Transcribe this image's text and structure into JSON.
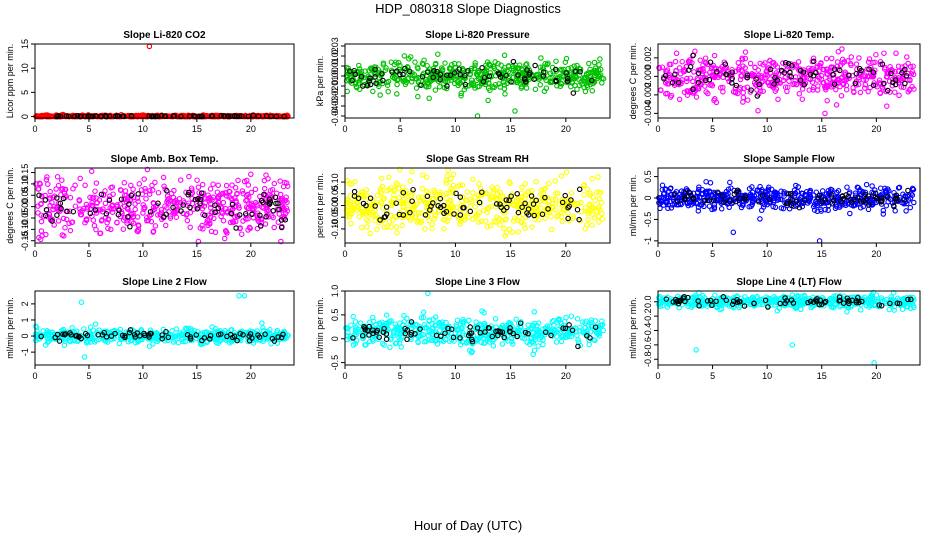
{
  "figure": {
    "title": "HDP_080318  Slope Diagnostics",
    "xlabel": "Hour of Day (UTC)"
  },
  "chart_data": [
    {
      "type": "scatter",
      "title": "Slope Li-820 CO2",
      "ylabel": "Licor ppm per min.",
      "color": "#ff0000",
      "xlim": [
        0,
        24
      ],
      "ylim": [
        -0.3,
        15
      ],
      "xticks": [
        0,
        5,
        10,
        15,
        20
      ],
      "yticks": [
        0,
        5,
        10,
        15
      ],
      "yticklabels": [
        "0",
        "5",
        "10",
        "15"
      ],
      "spread": 0.25,
      "center": 0.05,
      "outliers": [
        [
          10.6,
          14.5
        ]
      ]
    },
    {
      "type": "scatter",
      "title": "Slope Li-820 Pressure",
      "ylabel": "kPa per min.",
      "color": "#00c000",
      "xlim": [
        0,
        24
      ],
      "ylim": [
        -0.042,
        0.032
      ],
      "xticks": [
        0,
        5,
        10,
        15,
        20
      ],
      "yticks": [
        -0.04,
        -0.03,
        -0.02,
        -0.01,
        0,
        0.01,
        0.02,
        0.03
      ],
      "yticklabels": [
        "-0.04",
        "-0.03",
        "-0.02",
        "-0.01",
        "0.00",
        "0.01",
        "0.02",
        "0.03"
      ],
      "spread": 0.018,
      "center": 0.0,
      "outliers": [
        [
          12.0,
          -0.04
        ],
        [
          15.4,
          -0.035
        ]
      ]
    },
    {
      "type": "scatter",
      "title": "Slope Li-820 Temp.",
      "ylabel": "degrees C per min.",
      "color": "#ff00ff",
      "xlim": [
        0,
        24
      ],
      "ylim": [
        -0.0045,
        0.0035
      ],
      "xticks": [
        0,
        5,
        10,
        15,
        20
      ],
      "yticks": [
        -0.004,
        -0.002,
        0,
        0.002
      ],
      "yticklabels": [
        "-0.004",
        "-0.002",
        "0.000",
        "0.002"
      ],
      "spread": 0.0025,
      "center": 0.0,
      "outliers": [
        [
          15.3,
          -0.004
        ]
      ]
    },
    {
      "type": "scatter",
      "title": "Slope Amb. Box Temp.",
      "ylabel": "degrees C per min.",
      "color": "#ff00ff",
      "xlim": [
        0,
        24
      ],
      "ylim": [
        -0.16,
        0.17
      ],
      "xticks": [
        0,
        5,
        10,
        15,
        20
      ],
      "yticks": [
        -0.15,
        -0.1,
        -0.05,
        0,
        0.05,
        0.1,
        0.15
      ],
      "yticklabels": [
        "-0.15",
        "-0.10",
        "-0.05",
        "0.00",
        "0.05",
        "0.10",
        "0.15"
      ],
      "spread": 0.13,
      "center": 0.0,
      "outliers": []
    },
    {
      "type": "scatter",
      "title": "Slope Gas Stream RH",
      "ylabel": "percent per min.",
      "color": "#ffff00",
      "xlim": [
        0,
        24
      ],
      "ylim": [
        -0.16,
        0.16
      ],
      "xticks": [
        0,
        5,
        10,
        15,
        20
      ],
      "yticks": [
        -0.1,
        -0.05,
        0,
        0.05,
        0.1
      ],
      "yticklabels": [
        "-0.10",
        "-0.05",
        "0.00",
        "0.05",
        "0.10"
      ],
      "spread": 0.12,
      "center": 0.0,
      "outliers": []
    },
    {
      "type": "scatter",
      "title": "Slope Sample Flow",
      "ylabel": "ml/min per min.",
      "color": "#0000ff",
      "xlim": [
        0,
        24
      ],
      "ylim": [
        -1.05,
        0.7
      ],
      "xticks": [
        0,
        5,
        10,
        15,
        20
      ],
      "yticks": [
        -1,
        -0.5,
        0,
        0.5
      ],
      "yticklabels": [
        "-1",
        "-0.5",
        "0",
        "0.5"
      ],
      "spread": 0.3,
      "center": 0.0,
      "outliers": [
        [
          14.8,
          -1.0
        ],
        [
          6.9,
          -0.8
        ]
      ]
    },
    {
      "type": "scatter",
      "title": "Slope Line 2 Flow",
      "ylabel": "ml/min per min.",
      "color": "#00ffff",
      "xlim": [
        0,
        24
      ],
      "ylim": [
        -1.8,
        2.8
      ],
      "xticks": [
        0,
        5,
        10,
        15,
        20
      ],
      "yticks": [
        -1,
        0,
        1,
        2
      ],
      "yticklabels": [
        "-1",
        "0",
        "1",
        "2"
      ],
      "spread": 0.45,
      "center": 0.0,
      "outliers": [
        [
          4.3,
          2.1
        ],
        [
          18.9,
          2.5
        ],
        [
          19.4,
          2.5
        ],
        [
          4.6,
          -1.3
        ]
      ]
    },
    {
      "type": "scatter",
      "title": "Slope Line 3 Flow",
      "ylabel": "ml/min per min.",
      "color": "#00ffff",
      "xlim": [
        0,
        24
      ],
      "ylim": [
        -0.55,
        1.0
      ],
      "xticks": [
        0,
        5,
        10,
        15,
        20
      ],
      "yticks": [
        -0.5,
        0,
        0.5,
        1
      ],
      "yticklabels": [
        "-0.5",
        "0",
        "0.5",
        "1.0"
      ],
      "spread": 0.32,
      "center": 0.15,
      "outliers": [
        [
          7.5,
          0.95
        ]
      ]
    },
    {
      "type": "scatter",
      "title": "Slope Line 4 (LT) Flow",
      "ylabel": "ml/min per min.",
      "color": "#00ffff",
      "xlim": [
        0,
        24
      ],
      "ylim": [
        -0.88,
        0.15
      ],
      "xticks": [
        0,
        5,
        10,
        15,
        20
      ],
      "yticks": [
        -0.8,
        -0.6,
        -0.4,
        -0.2,
        0
      ],
      "yticklabels": [
        "-0.8",
        "-0.6",
        "-0.4",
        "-0.2",
        "0.0"
      ],
      "spread": 0.1,
      "center": 0.0,
      "outliers": [
        [
          3.5,
          -0.67
        ],
        [
          12.3,
          -0.6
        ],
        [
          19.8,
          -0.85
        ]
      ]
    }
  ]
}
